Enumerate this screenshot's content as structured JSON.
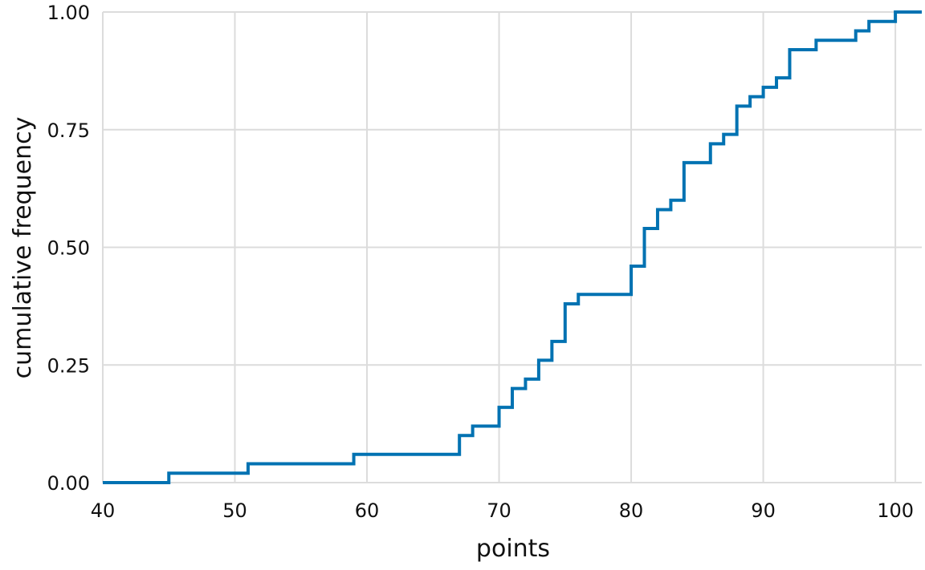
{
  "chart_data": {
    "type": "line",
    "subtype": "step (empirical cumulative distribution)",
    "xlabel": "points",
    "ylabel": "cumulative frequency",
    "xlim": [
      40,
      102
    ],
    "ylim": [
      0,
      1
    ],
    "x_ticks": [
      40,
      50,
      60,
      70,
      80,
      90,
      100
    ],
    "x_tick_labels": [
      "40",
      "50",
      "60",
      "70",
      "80",
      "90",
      "100"
    ],
    "y_ticks": [
      0,
      0.25,
      0.5,
      0.75,
      1
    ],
    "y_tick_labels": [
      "0.00",
      "0.25",
      "0.50",
      "0.75",
      "1.00"
    ],
    "grid": true,
    "series": [
      {
        "color": "#0072B2",
        "points": [
          {
            "x": 40,
            "y": 0.0
          },
          {
            "x": 45,
            "y": 0.02
          },
          {
            "x": 51,
            "y": 0.04
          },
          {
            "x": 59,
            "y": 0.06
          },
          {
            "x": 67,
            "y": 0.1
          },
          {
            "x": 68,
            "y": 0.12
          },
          {
            "x": 70,
            "y": 0.16
          },
          {
            "x": 71,
            "y": 0.2
          },
          {
            "x": 72,
            "y": 0.22
          },
          {
            "x": 73,
            "y": 0.26
          },
          {
            "x": 74,
            "y": 0.3
          },
          {
            "x": 75,
            "y": 0.38
          },
          {
            "x": 76,
            "y": 0.4
          },
          {
            "x": 80,
            "y": 0.46
          },
          {
            "x": 81,
            "y": 0.54
          },
          {
            "x": 82,
            "y": 0.58
          },
          {
            "x": 83,
            "y": 0.6
          },
          {
            "x": 84,
            "y": 0.68
          },
          {
            "x": 86,
            "y": 0.72
          },
          {
            "x": 87,
            "y": 0.74
          },
          {
            "x": 88,
            "y": 0.8
          },
          {
            "x": 89,
            "y": 0.82
          },
          {
            "x": 90,
            "y": 0.84
          },
          {
            "x": 91,
            "y": 0.86
          },
          {
            "x": 92,
            "y": 0.92
          },
          {
            "x": 94,
            "y": 0.94
          },
          {
            "x": 97,
            "y": 0.96
          },
          {
            "x": 98,
            "y": 0.98
          },
          {
            "x": 100,
            "y": 1.0
          },
          {
            "x": 102,
            "y": 1.0
          }
        ]
      }
    ]
  }
}
